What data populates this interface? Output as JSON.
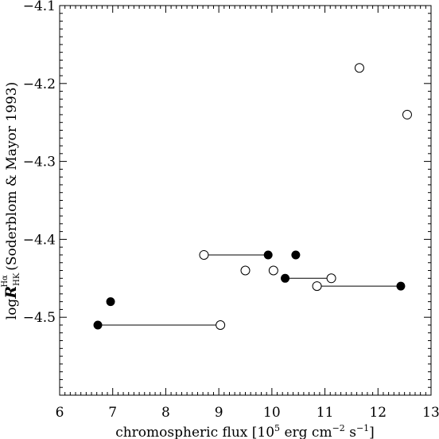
{
  "chart_data": {
    "type": "scatter",
    "title": "",
    "xlabel": {
      "base": "chromospheric flux [10",
      "sup1": "5",
      "mid": " erg cm",
      "sup2": "−2",
      "mid2": " s",
      "sup3": "−1",
      "end": "]"
    },
    "ylabel": {
      "log": "log",
      "R": "R",
      "sub": "HK",
      "sup": "Hα",
      "rest": " (Soderblom & Mayor 1993)"
    },
    "xlim": [
      6,
      13
    ],
    "ylim": [
      -4.6,
      -4.1
    ],
    "x_ticks": [
      6,
      7,
      8,
      9,
      10,
      11,
      12,
      13
    ],
    "x_tick_labels": [
      "6",
      "7",
      "8",
      "9",
      "10",
      "11",
      "12",
      "13"
    ],
    "y_ticks": [
      -4.5,
      -4.4,
      -4.3,
      -4.2,
      -4.1
    ],
    "y_tick_labels": [
      "−4.5",
      "−4.4",
      "−4.3",
      "−4.2",
      "−4.1"
    ],
    "grid": false,
    "series": [
      {
        "marker": "filled-circle",
        "points": [
          {
            "x": 6.72,
            "y": -4.51
          },
          {
            "x": 6.96,
            "y": -4.48
          },
          {
            "x": 9.93,
            "y": -4.42
          },
          {
            "x": 10.45,
            "y": -4.42
          },
          {
            "x": 10.25,
            "y": -4.45
          },
          {
            "x": 12.43,
            "y": -4.46
          }
        ]
      },
      {
        "marker": "open-circle",
        "points": [
          {
            "x": 9.03,
            "y": -4.51
          },
          {
            "x": 8.72,
            "y": -4.42
          },
          {
            "x": 9.5,
            "y": -4.44
          },
          {
            "x": 10.03,
            "y": -4.44
          },
          {
            "x": 11.12,
            "y": -4.45
          },
          {
            "x": 10.85,
            "y": -4.46
          },
          {
            "x": 11.65,
            "y": -4.18
          },
          {
            "x": 12.55,
            "y": -4.24
          }
        ]
      }
    ],
    "connectors": [
      {
        "x1": 6.72,
        "x2": 9.03,
        "y": -4.51
      },
      {
        "x1": 8.72,
        "x2": 9.93,
        "y": -4.42
      },
      {
        "x1": 10.25,
        "x2": 11.12,
        "y": -4.45
      },
      {
        "x1": 10.85,
        "x2": 12.43,
        "y": -4.46
      }
    ]
  }
}
